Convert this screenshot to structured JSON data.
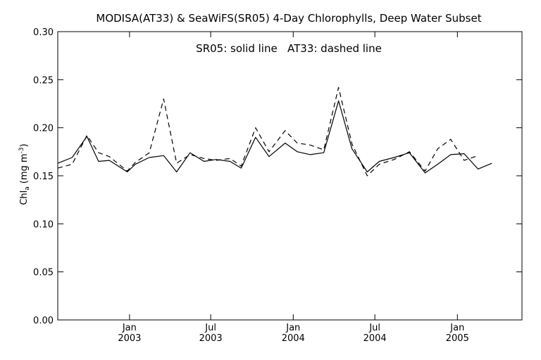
{
  "chart_data": {
    "type": "line",
    "title": "MODISA(AT33) & SeaWiFS(SR05) 4-Day Chlorophylls, Deep Water Subset",
    "annotation": "SR05: solid line   AT33: dashed line",
    "ylabel_main": "Chl",
    "ylabel_sub": "a",
    "ylabel_unit": "(mg m",
    "ylabel_exp": "-3",
    "ylabel_close": ")",
    "ylim": [
      0.0,
      0.3
    ],
    "yticks": [
      "0.00",
      "0.05",
      "0.10",
      "0.15",
      "0.20",
      "0.25",
      "0.30"
    ],
    "ytick_values": [
      0.0,
      0.05,
      0.1,
      0.15,
      0.2,
      0.25,
      0.3
    ],
    "x_axis": "date",
    "xlim": [
      "2002-07-25",
      "2005-05-25"
    ],
    "xticks": [
      {
        "date": "2003-01-01",
        "line1": "Jan",
        "line2": "2003"
      },
      {
        "date": "2003-07-01",
        "line1": "Jul",
        "line2": "2003"
      },
      {
        "date": "2004-01-01",
        "line1": "Jan",
        "line2": "2004"
      },
      {
        "date": "2004-07-01",
        "line1": "Jul",
        "line2": "2004"
      },
      {
        "date": "2005-01-01",
        "line1": "Jan",
        "line2": "2005"
      }
    ],
    "grid": false,
    "series": [
      {
        "name": "SR05",
        "style": "solid",
        "color": "#000000",
        "points": [
          [
            "2002-07-25",
            0.163
          ],
          [
            "2002-08-26",
            0.169
          ],
          [
            "2002-09-28",
            0.191
          ],
          [
            "2002-10-24",
            0.165
          ],
          [
            "2002-11-17",
            0.166
          ],
          [
            "2002-12-27",
            0.154
          ],
          [
            "2003-01-14",
            0.162
          ],
          [
            "2003-02-14",
            0.169
          ],
          [
            "2003-03-18",
            0.171
          ],
          [
            "2003-04-16",
            0.154
          ],
          [
            "2003-05-16",
            0.174
          ],
          [
            "2003-06-16",
            0.165
          ],
          [
            "2003-07-13",
            0.167
          ],
          [
            "2003-08-13",
            0.165
          ],
          [
            "2003-09-07",
            0.158
          ],
          [
            "2003-10-09",
            0.19
          ],
          [
            "2003-11-08",
            0.17
          ],
          [
            "2003-12-14",
            0.184
          ],
          [
            "2004-01-10",
            0.175
          ],
          [
            "2004-02-08",
            0.172
          ],
          [
            "2004-03-09",
            0.174
          ],
          [
            "2004-04-11",
            0.228
          ],
          [
            "2004-05-11",
            0.178
          ],
          [
            "2004-06-14",
            0.154
          ],
          [
            "2004-07-11",
            0.165
          ],
          [
            "2004-08-13",
            0.169
          ],
          [
            "2004-09-16",
            0.174
          ],
          [
            "2004-10-21",
            0.153
          ],
          [
            "2004-11-18",
            0.162
          ],
          [
            "2004-12-17",
            0.172
          ],
          [
            "2005-01-16",
            0.173
          ],
          [
            "2005-02-16",
            0.157
          ],
          [
            "2005-03-19",
            0.163
          ]
        ]
      },
      {
        "name": "AT33",
        "style": "dashed",
        "color": "#000000",
        "points": [
          [
            "2002-07-25",
            0.158
          ],
          [
            "2002-08-26",
            0.162
          ],
          [
            "2002-09-28",
            0.192
          ],
          [
            "2002-10-24",
            0.174
          ],
          [
            "2002-11-17",
            0.17
          ],
          [
            "2002-12-27",
            0.155
          ],
          [
            "2003-01-14",
            0.164
          ],
          [
            "2003-02-14",
            0.174
          ],
          [
            "2003-03-18",
            0.23
          ],
          [
            "2003-04-16",
            0.163
          ],
          [
            "2003-05-16",
            0.172
          ],
          [
            "2003-06-16",
            0.168
          ],
          [
            "2003-07-13",
            0.166
          ],
          [
            "2003-08-13",
            0.168
          ],
          [
            "2003-09-07",
            0.16
          ],
          [
            "2003-10-09",
            0.2
          ],
          [
            "2003-11-08",
            0.175
          ],
          [
            "2003-12-14",
            0.197
          ],
          [
            "2004-01-10",
            0.184
          ],
          [
            "2004-02-08",
            0.182
          ],
          [
            "2004-03-09",
            0.177
          ],
          [
            "2004-04-11",
            0.242
          ],
          [
            "2004-05-11",
            0.183
          ],
          [
            "2004-06-14",
            0.15
          ],
          [
            "2004-07-11",
            0.162
          ],
          [
            "2004-08-13",
            0.167
          ],
          [
            "2004-09-16",
            0.175
          ],
          [
            "2004-10-21",
            0.155
          ],
          [
            "2004-11-18",
            0.178
          ],
          [
            "2004-12-17",
            0.188
          ],
          [
            "2005-01-16",
            0.166
          ],
          [
            "2005-02-16",
            0.171
          ]
        ]
      }
    ]
  }
}
